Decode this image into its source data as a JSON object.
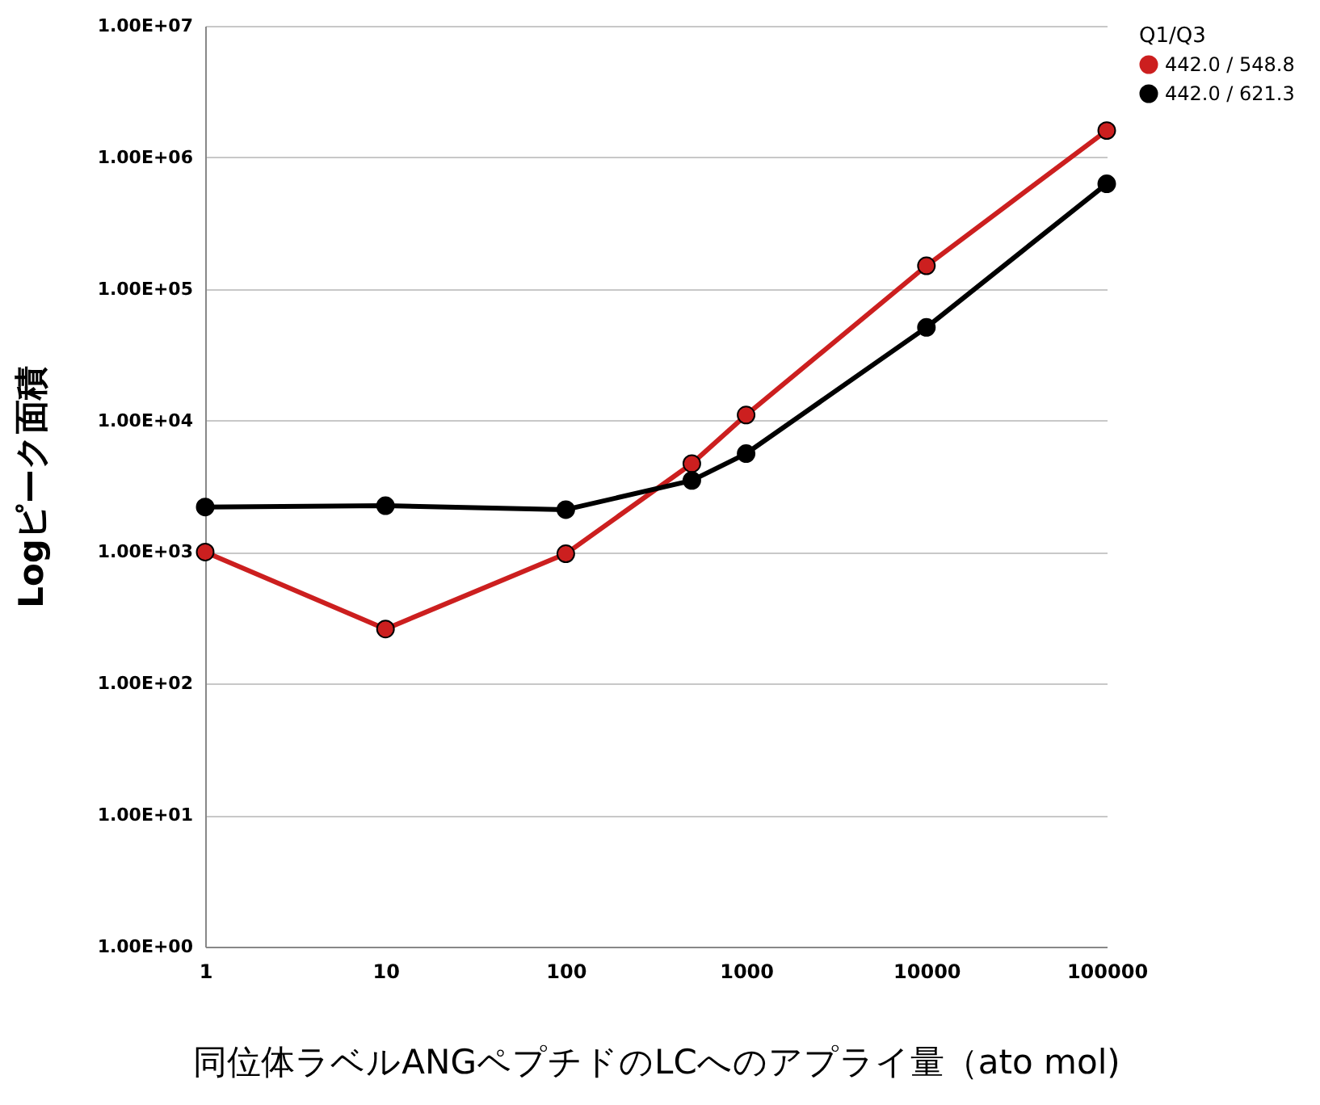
{
  "chart_data": {
    "type": "line",
    "xlabel": "同位体ラベルANGペプチドのLCへのアプライ量（ato mol)",
    "ylabel": "Logピーク面積",
    "legend_title": "Q1/Q3",
    "x": [
      1,
      10,
      100,
      500,
      1000,
      10000,
      100000
    ],
    "series": [
      {
        "name": "442.0 / 548.8",
        "color": "#cc1f1f",
        "values": [
          1000,
          260,
          970,
          4700,
          11000,
          150000,
          1600000
        ]
      },
      {
        "name": "442.0 / 621.3",
        "color": "#000000",
        "values": [
          2200,
          2250,
          2100,
          3500,
          5600,
          51000,
          630000
        ]
      }
    ],
    "log": "xy",
    "xlim": [
      1,
      100000
    ],
    "xticks": [
      1,
      10,
      100,
      1000,
      10000,
      100000
    ],
    "ylim": [
      1,
      10000000
    ],
    "yticks": [
      {
        "value": 1,
        "label": "1.00E+00"
      },
      {
        "value": 10,
        "label": "1.00E+01"
      },
      {
        "value": 100,
        "label": "1.00E+02"
      },
      {
        "value": 1000,
        "label": "1.00E+03"
      },
      {
        "value": 10000,
        "label": "1.00E+04"
      },
      {
        "value": 100000,
        "label": "1.00E+05"
      },
      {
        "value": 1000000,
        "label": "1.00E+06"
      },
      {
        "value": 10000000,
        "label": "1.00E+07"
      }
    ],
    "grid": "y",
    "legend": "right",
    "marker": "circle",
    "line_style": "solid"
  }
}
